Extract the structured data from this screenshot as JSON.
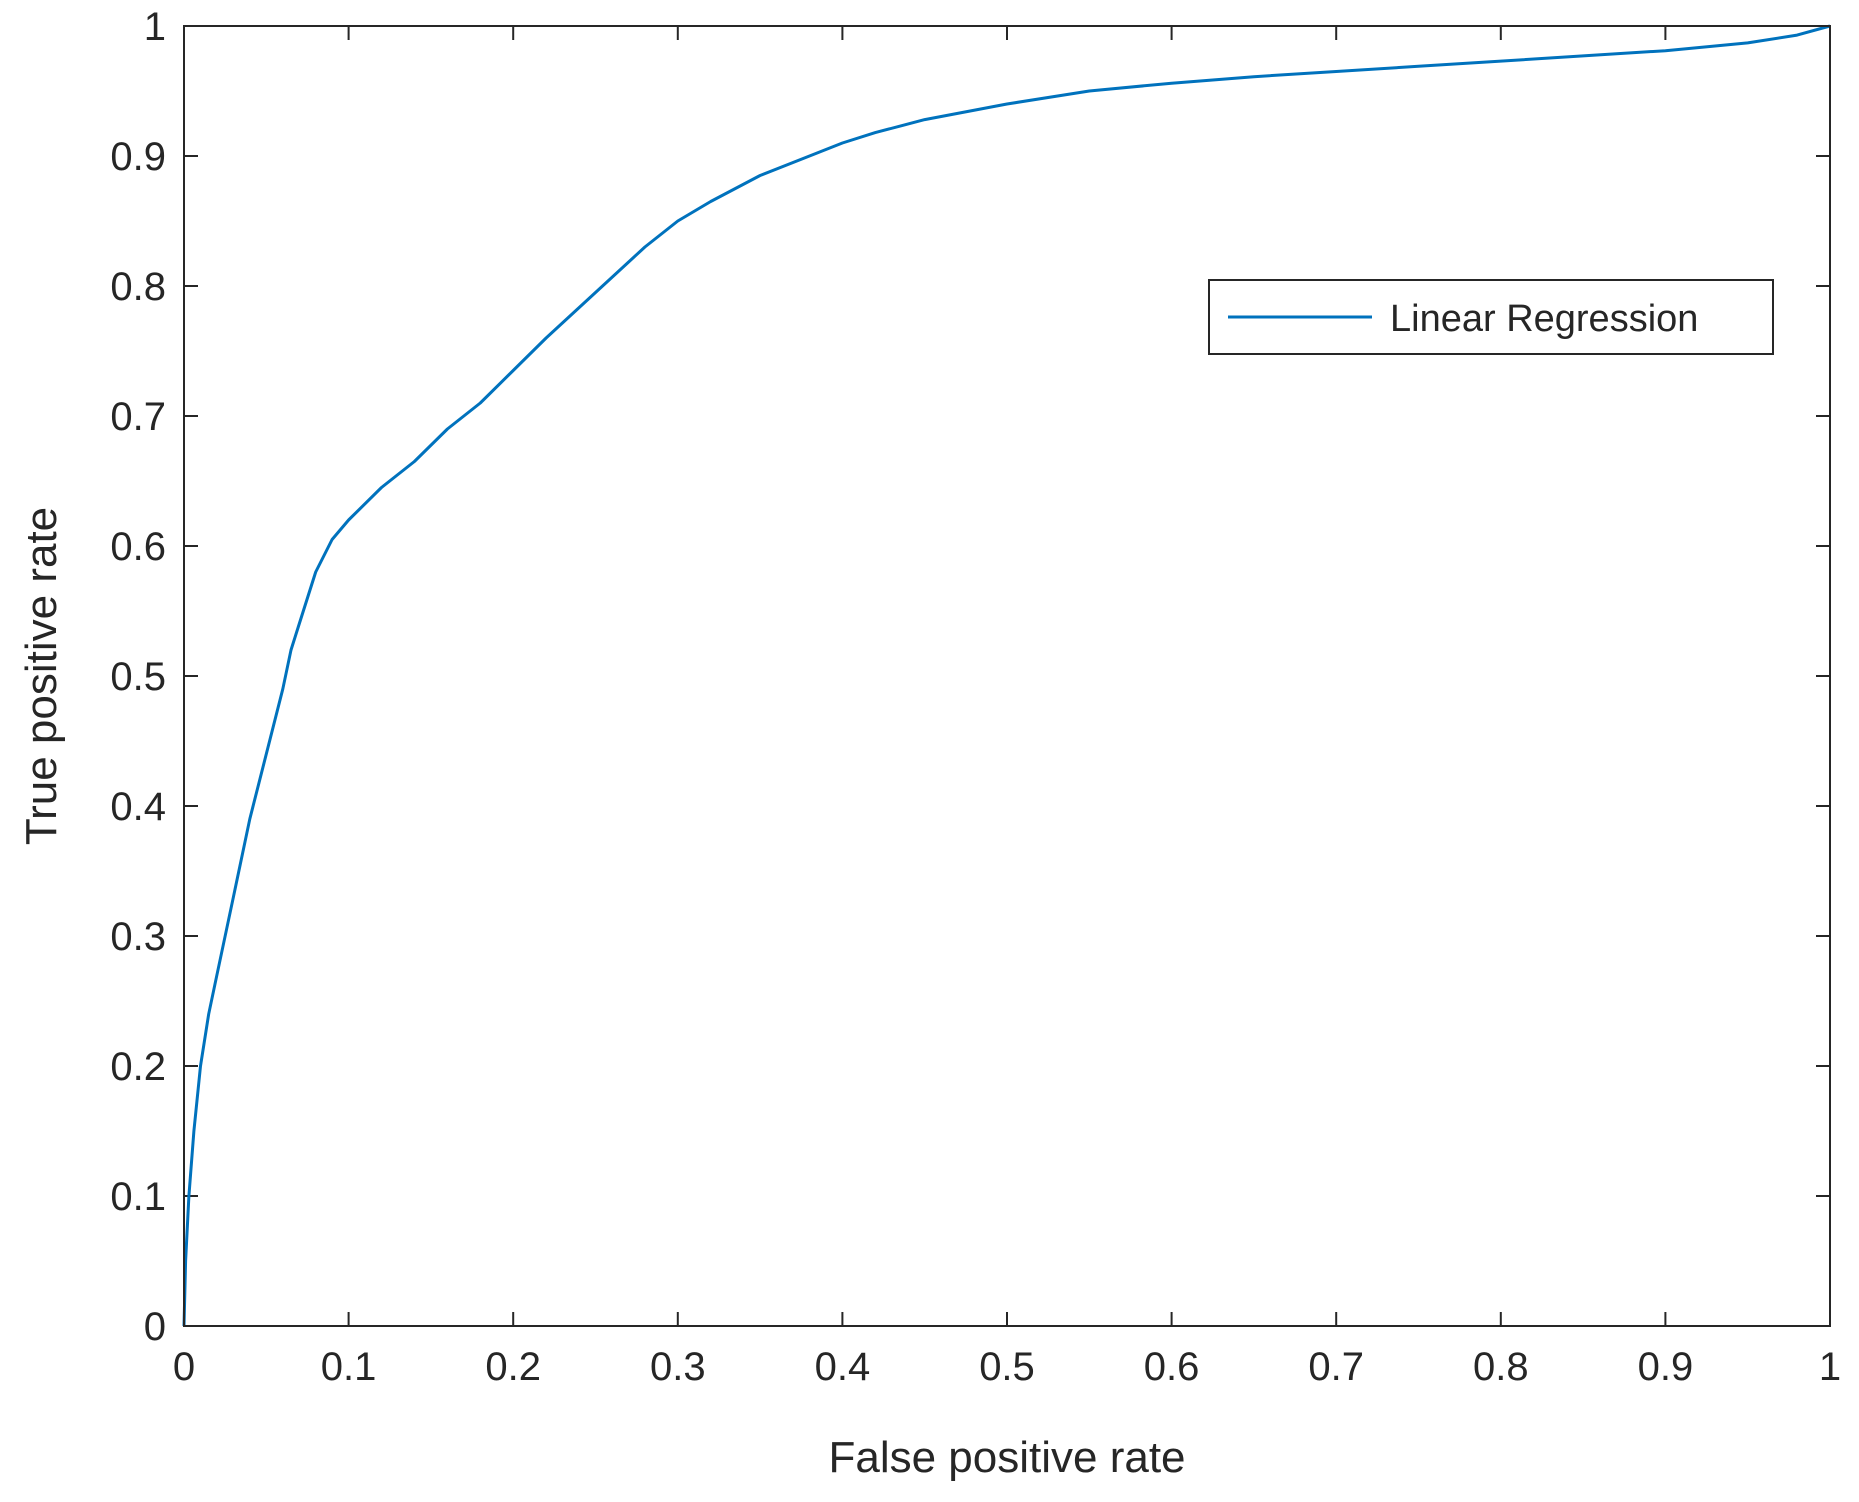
{
  "chart_data": {
    "type": "line",
    "title": "",
    "xlabel": "False positive rate",
    "ylabel": "True positive rate",
    "xlim": [
      0,
      1
    ],
    "ylim": [
      0,
      1
    ],
    "xticks": [
      0,
      0.1,
      0.2,
      0.3,
      0.4,
      0.5,
      0.6,
      0.7,
      0.8,
      0.9,
      1
    ],
    "yticks": [
      0,
      0.1,
      0.2,
      0.3,
      0.4,
      0.5,
      0.6,
      0.7,
      0.8,
      0.9,
      1
    ],
    "xtick_labels": [
      "0",
      "0.1",
      "0.2",
      "0.3",
      "0.4",
      "0.5",
      "0.6",
      "0.7",
      "0.8",
      "0.9",
      "1"
    ],
    "ytick_labels": [
      "0",
      "0.1",
      "0.2",
      "0.3",
      "0.4",
      "0.5",
      "0.6",
      "0.7",
      "0.8",
      "0.9",
      "1"
    ],
    "grid": false,
    "legend_position": "top-right",
    "series": [
      {
        "name": "Linear Regression",
        "color": "#0072BD",
        "x": [
          0,
          0.001,
          0.003,
          0.006,
          0.01,
          0.015,
          0.02,
          0.03,
          0.04,
          0.05,
          0.06,
          0.065,
          0.07,
          0.08,
          0.09,
          0.1,
          0.12,
          0.14,
          0.16,
          0.18,
          0.2,
          0.22,
          0.25,
          0.28,
          0.3,
          0.32,
          0.35,
          0.38,
          0.4,
          0.42,
          0.45,
          0.5,
          0.55,
          0.6,
          0.65,
          0.7,
          0.75,
          0.8,
          0.85,
          0.9,
          0.95,
          0.98,
          1
        ],
        "y": [
          0,
          0.05,
          0.1,
          0.15,
          0.2,
          0.24,
          0.27,
          0.33,
          0.39,
          0.44,
          0.49,
          0.52,
          0.54,
          0.58,
          0.605,
          0.62,
          0.645,
          0.665,
          0.69,
          0.71,
          0.735,
          0.76,
          0.795,
          0.83,
          0.85,
          0.865,
          0.885,
          0.9,
          0.91,
          0.918,
          0.928,
          0.94,
          0.95,
          0.956,
          0.961,
          0.965,
          0.969,
          0.973,
          0.977,
          0.981,
          0.987,
          0.993,
          1
        ]
      }
    ]
  }
}
